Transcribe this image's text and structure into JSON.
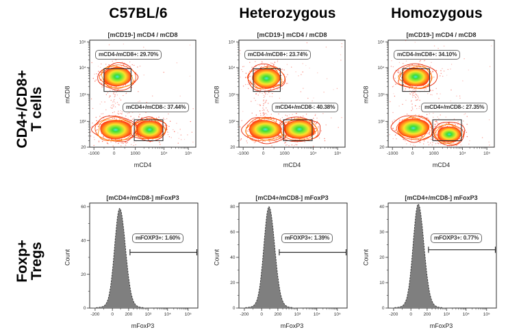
{
  "chart_data": {
    "type": "flow-cytometry-panel-grid",
    "columns": [
      "C57BL/6",
      "Heterozygous",
      "Homozygous"
    ],
    "row_labels": [
      {
        "line1": "CD4+/CD8+",
        "line2": "T cells"
      },
      {
        "line1": "Foxp+",
        "line2": "Tregs"
      }
    ],
    "scatter_row": {
      "title": "[mCD19-] mCD4 / mCD8",
      "xlabel": "mCD4",
      "ylabel": "mCD8",
      "xticks": [
        "-1000",
        "0",
        "1000",
        "10⁴",
        "10⁵"
      ],
      "yticks": [
        "10⁵",
        "10⁴",
        "10³",
        "10²",
        "20"
      ],
      "xrange": [
        -1800,
        200000
      ],
      "yrange": [
        20,
        200000
      ],
      "gate_regions": [
        {
          "name": "CD8+ gate",
          "x": [
            -500,
            800
          ],
          "y": [
            1300,
            9100
          ]
        },
        {
          "name": "CD4+ gate",
          "x": [
            950,
            9200
          ],
          "y": [
            30,
            115
          ]
        }
      ],
      "panels": [
        {
          "column": "C57BL/6",
          "gates": [
            {
              "label": "mCD4-/mCD8+: 29.70%",
              "percent": 29.7
            },
            {
              "label": "mCD4+/mCD8-: 37.44%",
              "percent": 37.44
            }
          ],
          "populations": [
            {
              "name": "CD8+",
              "mCD4": 150,
              "mCD8": 4500,
              "sx": 0.062,
              "sy": 0.04
            },
            {
              "name": "CD4+",
              "mCD4": 3200,
              "mCD8": 60,
              "sx": 0.058,
              "sy": 0.036
            },
            {
              "name": "double-negative",
              "mCD4": 60,
              "mCD8": 60,
              "sx": 0.07,
              "sy": 0.04
            }
          ]
        },
        {
          "column": "Heterozygous",
          "gates": [
            {
              "label": "mCD4-/mCD8+: 23.74%",
              "percent": 23.74
            },
            {
              "label": "mCD4+/mCD8-: 40.38%",
              "percent": 40.38
            }
          ],
          "populations": [
            {
              "name": "CD8+",
              "mCD4": 150,
              "mCD8": 4200,
              "sx": 0.06,
              "sy": 0.04
            },
            {
              "name": "CD4+",
              "mCD4": 3400,
              "mCD8": 60,
              "sx": 0.064,
              "sy": 0.038
            },
            {
              "name": "double-negative",
              "mCD4": 60,
              "mCD8": 60,
              "sx": 0.07,
              "sy": 0.04
            }
          ]
        },
        {
          "column": "Homozygous",
          "gates": [
            {
              "label": "mCD4-/mCD8+: 34.10%",
              "percent": 34.1
            },
            {
              "label": "mCD4+/mCD8-: 27.35%",
              "percent": 27.35
            }
          ],
          "populations": [
            {
              "name": "CD8+",
              "mCD4": 150,
              "mCD8": 4500,
              "sx": 0.062,
              "sy": 0.04
            },
            {
              "name": "CD4+",
              "mCD4": 3400,
              "mCD8": 45,
              "sx": 0.05,
              "sy": 0.034
            },
            {
              "name": "double-negative",
              "mCD4": 60,
              "mCD8": 65,
              "sx": 0.064,
              "sy": 0.04
            }
          ]
        }
      ]
    },
    "hist_row": {
      "title": "[mCD4+/mCD8-] mFoxP3",
      "xlabel": "mFoxP3",
      "ylabel": "Count",
      "xticks": [
        "-200",
        "0",
        "200",
        "10³",
        "10⁴",
        "10⁵"
      ],
      "peak_center": 90,
      "gate_range": [
        200,
        200000
      ],
      "panels": [
        {
          "column": "C57BL/6",
          "gate_label": "mFOXP3+: 1.60%",
          "percent": 1.6,
          "peak_count": 59,
          "ymax": 60,
          "yticks": [
            0,
            20,
            40,
            60
          ],
          "gate_line_count": 33
        },
        {
          "column": "Heterozygous",
          "gate_label": "mFOXP3+: 1.39%",
          "percent": 1.39,
          "peak_count": 80,
          "ymax": 80,
          "yticks": [
            0,
            20,
            40,
            60,
            80
          ],
          "gate_line_count": 44
        },
        {
          "column": "Homozygous",
          "gate_label": "mFOXP3+: 0.77%",
          "percent": 0.77,
          "peak_count": 41,
          "ymax": 40,
          "yticks": [
            0,
            10,
            20,
            30,
            40
          ],
          "gate_line_count": 23
        }
      ]
    }
  }
}
